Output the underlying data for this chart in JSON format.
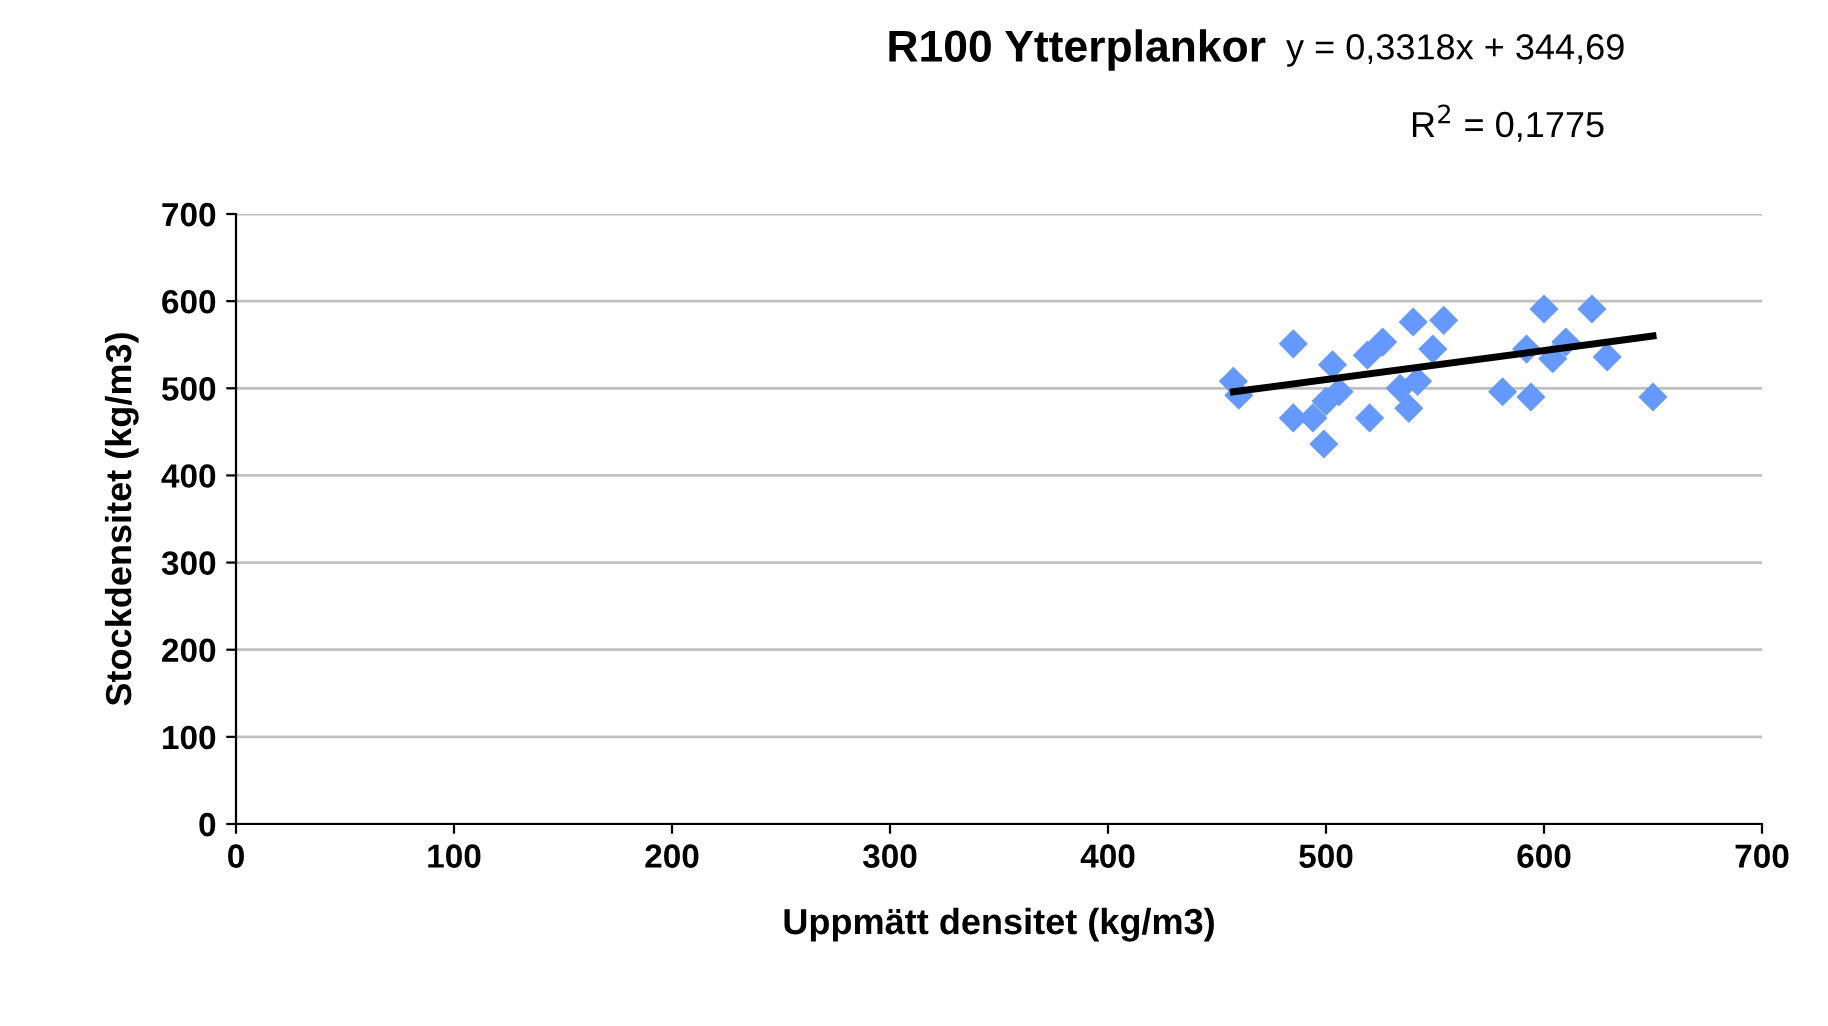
{
  "chart_data": {
    "type": "scatter",
    "title": "R100 Ytterplankor",
    "xlabel": "Uppmätt densitet (kg/m3)",
    "ylabel": "Stockdensitet (kg/m3)",
    "annotations": [
      "y = 0,3318x + 344,69",
      "R$^{2}$ = 0,1775"
    ],
    "xlim": [
      0,
      700
    ],
    "xticks": [
      0,
      100,
      200,
      300,
      400,
      500,
      600,
      700
    ],
    "ylim": [
      0,
      700
    ],
    "yticks": [
      0,
      100,
      200,
      300,
      400,
      500,
      600,
      700
    ],
    "grid": "y",
    "marker": "diamond",
    "legend": false,
    "series": [
      {
        "color": "#6699ff",
        "x": [
          457.5,
          460,
          485,
          485,
          494,
          499,
          503,
          506,
          500,
          519,
          526,
          520,
          534,
          538,
          540,
          554,
          549,
          542,
          581,
          594,
          592,
          600,
          604,
          610,
          622,
          629,
          650
        ],
        "values": [
          508,
          492,
          551,
          466,
          466,
          436,
          527,
          496,
          485,
          538,
          553,
          466,
          500,
          477,
          576,
          578,
          545,
          508,
          496,
          490,
          545,
          591,
          534,
          553,
          591,
          536,
          490
        ]
      },
      {
        "type": "line",
        "color": "#000000",
        "marker": "none",
        "x": [
          457.5,
          650
        ],
        "values": [
          496,
          560
        ]
      }
    ]
  }
}
